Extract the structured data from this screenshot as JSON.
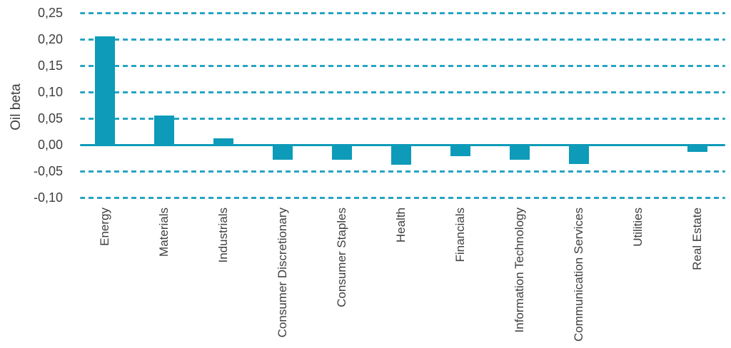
{
  "chart_data": {
    "type": "bar",
    "title": "",
    "xlabel": "",
    "ylabel": "Oil beta",
    "decimal_separator": ",",
    "legend": "none",
    "grid": "dashed horizontal gridlines",
    "ylim": [
      -0.1,
      0.25
    ],
    "categories": [
      "Energy",
      "Materials",
      "Industrials",
      "Consumer Discretionary",
      "Consumer Staples",
      "Health",
      "Financials",
      "Information Technology",
      "Communication Services",
      "Utilities",
      "Real Estate"
    ],
    "values": [
      0.205,
      0.055,
      0.012,
      -0.028,
      -0.028,
      -0.038,
      -0.021,
      -0.028,
      -0.037,
      0.0,
      -0.013
    ],
    "yticks": [
      {
        "value": 0.25,
        "label": "0,25"
      },
      {
        "value": 0.2,
        "label": "0,20"
      },
      {
        "value": 0.15,
        "label": "0,15"
      },
      {
        "value": 0.1,
        "label": "0,10"
      },
      {
        "value": 0.05,
        "label": "0,05"
      },
      {
        "value": 0.0,
        "label": "0,00"
      },
      {
        "value": -0.05,
        "label": "-0,05"
      },
      {
        "value": -0.1,
        "label": "-0,10"
      }
    ],
    "colors": {
      "bar": "#0d9bb9",
      "gridline": "#27a4c3",
      "zero_line": "#0d9bb9",
      "text": "#3f3f3f",
      "background": "#ffffff"
    }
  }
}
